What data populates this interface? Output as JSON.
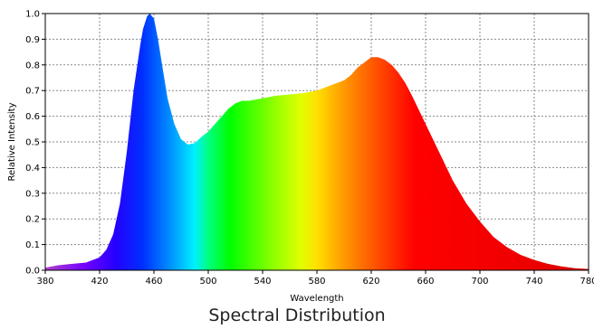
{
  "chart_data": {
    "type": "area",
    "caption": "Spectral Distribution",
    "xlabel": "Wavelength",
    "ylabel": "Relative Intensity",
    "xlim": [
      380,
      780
    ],
    "ylim": [
      0,
      1.0
    ],
    "x_ticks": [
      380,
      420,
      460,
      500,
      540,
      580,
      620,
      660,
      700,
      740,
      780
    ],
    "y_ticks": [
      "0.0",
      "0.1",
      "0.2",
      "0.3",
      "0.4",
      "0.5",
      "0.6",
      "0.7",
      "0.8",
      "0.9",
      "1.0"
    ],
    "grid": true,
    "fill": "visible-spectrum",
    "x": [
      380,
      390,
      400,
      410,
      420,
      425,
      430,
      435,
      440,
      445,
      450,
      452,
      455,
      457,
      460,
      463,
      466,
      470,
      475,
      480,
      485,
      490,
      495,
      500,
      505,
      510,
      515,
      520,
      525,
      530,
      540,
      550,
      560,
      570,
      580,
      590,
      600,
      605,
      610,
      615,
      620,
      625,
      630,
      635,
      640,
      645,
      650,
      660,
      670,
      680,
      690,
      700,
      710,
      720,
      730,
      740,
      750,
      760,
      770,
      780
    ],
    "y": [
      0.01,
      0.02,
      0.025,
      0.03,
      0.05,
      0.08,
      0.14,
      0.26,
      0.46,
      0.7,
      0.88,
      0.94,
      0.99,
      1.0,
      0.98,
      0.9,
      0.8,
      0.67,
      0.57,
      0.51,
      0.49,
      0.495,
      0.52,
      0.54,
      0.57,
      0.6,
      0.63,
      0.65,
      0.66,
      0.66,
      0.67,
      0.68,
      0.685,
      0.69,
      0.7,
      0.72,
      0.74,
      0.76,
      0.79,
      0.81,
      0.83,
      0.83,
      0.82,
      0.8,
      0.77,
      0.73,
      0.68,
      0.57,
      0.46,
      0.35,
      0.26,
      0.19,
      0.13,
      0.09,
      0.06,
      0.04,
      0.025,
      0.015,
      0.008,
      0.005
    ]
  }
}
